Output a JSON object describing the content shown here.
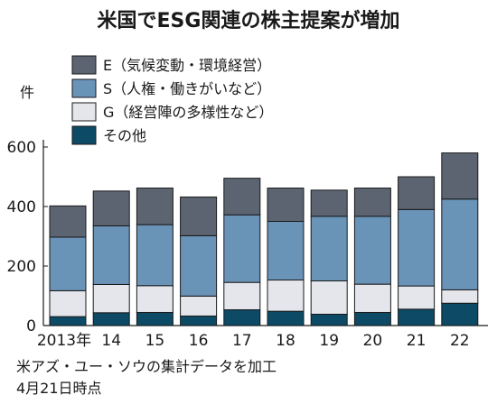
{
  "chart_data": {
    "type": "bar",
    "stacked": true,
    "title": "米国でESG関連の株主提案が増加",
    "yunit": "件",
    "categories": [
      "2013年",
      "14",
      "15",
      "16",
      "17",
      "18",
      "19",
      "20",
      "21",
      "22"
    ],
    "ylim": [
      0,
      600
    ],
    "yticks": [
      0,
      200,
      400,
      600
    ],
    "grid": false,
    "legend_position": "top-left",
    "series": [
      {
        "name": "その他",
        "color": "#0c4a66",
        "values": [
          30,
          43,
          44,
          32,
          53,
          48,
          38,
          44,
          55,
          75
        ]
      },
      {
        "name": "G（経営陣の多様性など）",
        "color": "#e4e6ec",
        "values": [
          87,
          95,
          90,
          67,
          92,
          105,
          112,
          95,
          78,
          45
        ]
      },
      {
        "name": "S（人権・働きがいなど）",
        "color": "#6a93b8",
        "values": [
          180,
          197,
          205,
          203,
          227,
          197,
          217,
          228,
          257,
          305
        ]
      },
      {
        "name": "E（気候変動・環境経営）",
        "color": "#5c6472",
        "values": [
          105,
          117,
          123,
          130,
          123,
          112,
          88,
          95,
          110,
          155
        ]
      }
    ],
    "legend_order": [
      "E（気候変動・環境経営）",
      "S（人権・働きがいなど）",
      "G（経営陣の多様性など）",
      "その他"
    ],
    "notes": [
      "米アズ・ユー・ソウの集計データを加工",
      "4月21日時点"
    ]
  }
}
